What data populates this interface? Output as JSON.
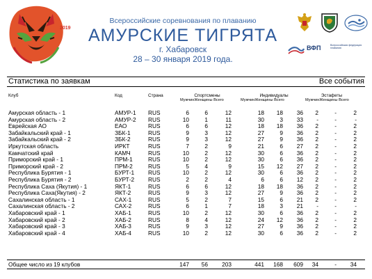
{
  "banner": {
    "year": "2019",
    "event_title": "Всероссийские соревнования по плаванию",
    "brand": "АМУРСКИЕ ТИГРЯТА",
    "city": "г. Хабаровск",
    "dates": "28 – 30 января 2019 года.",
    "vfp": "ВФП",
    "vfp_sub": "Всероссийская федерация плавания"
  },
  "report": {
    "title": "Статистика по заявкам",
    "scope": "Все события"
  },
  "columns": {
    "club": "Клуб",
    "code": "Код",
    "country": "Страна",
    "athletes": "Спортсмены",
    "individual": "Индивидуалы",
    "relays": "Эстафеты",
    "sub": "МужчинЖенщины Всего"
  },
  "rows": [
    {
      "club": "Амурская область - 1",
      "code": "АМУР-1",
      "country": "RUS",
      "vals": [
        "6",
        "6",
        "12",
        "18",
        "18",
        "36",
        "2",
        "-",
        "2"
      ]
    },
    {
      "club": "Амурская область - 2",
      "code": "АМУР-2",
      "country": "RUS",
      "vals": [
        "10",
        "1",
        "11",
        "30",
        "3",
        "33",
        "-",
        "-",
        "-"
      ]
    },
    {
      "club": "Еврейская АО",
      "code": "ЕАО",
      "country": "RUS",
      "vals": [
        "6",
        "6",
        "12",
        "18",
        "18",
        "36",
        "2",
        "-",
        "2"
      ]
    },
    {
      "club": "Забайкальский край - 1",
      "code": "ЗБК-1",
      "country": "RUS",
      "vals": [
        "9",
        "3",
        "12",
        "27",
        "9",
        "36",
        "2",
        "-",
        "2"
      ]
    },
    {
      "club": "Забайкальский край - 2",
      "code": "ЗБК-2",
      "country": "RUS",
      "vals": [
        "9",
        "3",
        "12",
        "27",
        "9",
        "36",
        "2",
        "-",
        "2"
      ]
    },
    {
      "club": "Иркутская область",
      "code": "ИРКТ",
      "country": "RUS",
      "vals": [
        "7",
        "2",
        "9",
        "21",
        "6",
        "27",
        "2",
        "-",
        "2"
      ]
    },
    {
      "club": "Камчатский край",
      "code": "КАМЧ",
      "country": "RUS",
      "vals": [
        "10",
        "2",
        "12",
        "30",
        "6",
        "36",
        "2",
        "-",
        "2"
      ]
    },
    {
      "club": "Приморский край - 1",
      "code": "ПРМ-1",
      "country": "RUS",
      "vals": [
        "10",
        "2",
        "12",
        "30",
        "6",
        "36",
        "2",
        "-",
        "2"
      ]
    },
    {
      "club": "Приморский край - 2",
      "code": "ПРМ-2",
      "country": "RUS",
      "vals": [
        "5",
        "4",
        "9",
        "15",
        "12",
        "27",
        "2",
        "-",
        "2"
      ]
    },
    {
      "club": "Республика Бурятия - 1",
      "code": "БУРТ-1",
      "country": "RUS",
      "vals": [
        "10",
        "2",
        "12",
        "30",
        "6",
        "36",
        "2",
        "-",
        "2"
      ]
    },
    {
      "club": "Республика Бурятия - 2",
      "code": "БУРТ-2",
      "country": "RUS",
      "vals": [
        "2",
        "2",
        "4",
        "6",
        "6",
        "12",
        "2",
        "-",
        "2"
      ]
    },
    {
      "club": "Республика Саха (Якутия) - 1",
      "code": "ЯКТ-1",
      "country": "RUS",
      "vals": [
        "6",
        "6",
        "12",
        "18",
        "18",
        "36",
        "2",
        "-",
        "2"
      ]
    },
    {
      "club": "Республика Саха(Якутия) - 2",
      "code": "ЯКТ-2",
      "country": "RUS",
      "vals": [
        "9",
        "3",
        "12",
        "27",
        "9",
        "36",
        "2",
        "-",
        "2"
      ]
    },
    {
      "club": "Сахалинская область - 1",
      "code": "САХ-1",
      "country": "RUS",
      "vals": [
        "5",
        "2",
        "7",
        "15",
        "6",
        "21",
        "2",
        "-",
        "2"
      ]
    },
    {
      "club": "Сахалинская область - 2",
      "code": "САХ-2",
      "country": "RUS",
      "vals": [
        "6",
        "1",
        "7",
        "18",
        "3",
        "21",
        "-",
        "-",
        "-"
      ]
    },
    {
      "club": "Хабаровский край - 1",
      "code": "ХАБ-1",
      "country": "RUS",
      "vals": [
        "10",
        "2",
        "12",
        "30",
        "6",
        "36",
        "2",
        "-",
        "2"
      ]
    },
    {
      "club": "Хабаровский край - 2",
      "code": "ХАБ-2",
      "country": "RUS",
      "vals": [
        "8",
        "4",
        "12",
        "24",
        "12",
        "36",
        "2",
        "-",
        "2"
      ]
    },
    {
      "club": "Хабаровский край - 3",
      "code": "ХАБ-3",
      "country": "RUS",
      "vals": [
        "9",
        "3",
        "12",
        "27",
        "9",
        "36",
        "2",
        "-",
        "2"
      ]
    },
    {
      "club": "Хабаровский край - 4",
      "code": "ХАБ-4",
      "country": "RUS",
      "vals": [
        "10",
        "2",
        "12",
        "30",
        "6",
        "36",
        "2",
        "-",
        "2"
      ]
    }
  ],
  "total": {
    "label": "Общее число из 19 клубов",
    "vals": [
      "147",
      "56",
      "203",
      "441",
      "168",
      "609",
      "34",
      "-",
      "34"
    ]
  },
  "colors": {
    "brand_blue": "#2e5a9c",
    "tiger_orange": "#e2532b",
    "tiger_red": "#c7252d",
    "tiger_green": "#55a33e"
  },
  "icons": {
    "tiger": "tiger-mascot-logo",
    "eagle": "russian-eagle-emblem",
    "shield": "khabarovsk-coat-of-arms",
    "swim": "swimming-federation-logo",
    "vfp": "vfp-wave-logo"
  }
}
